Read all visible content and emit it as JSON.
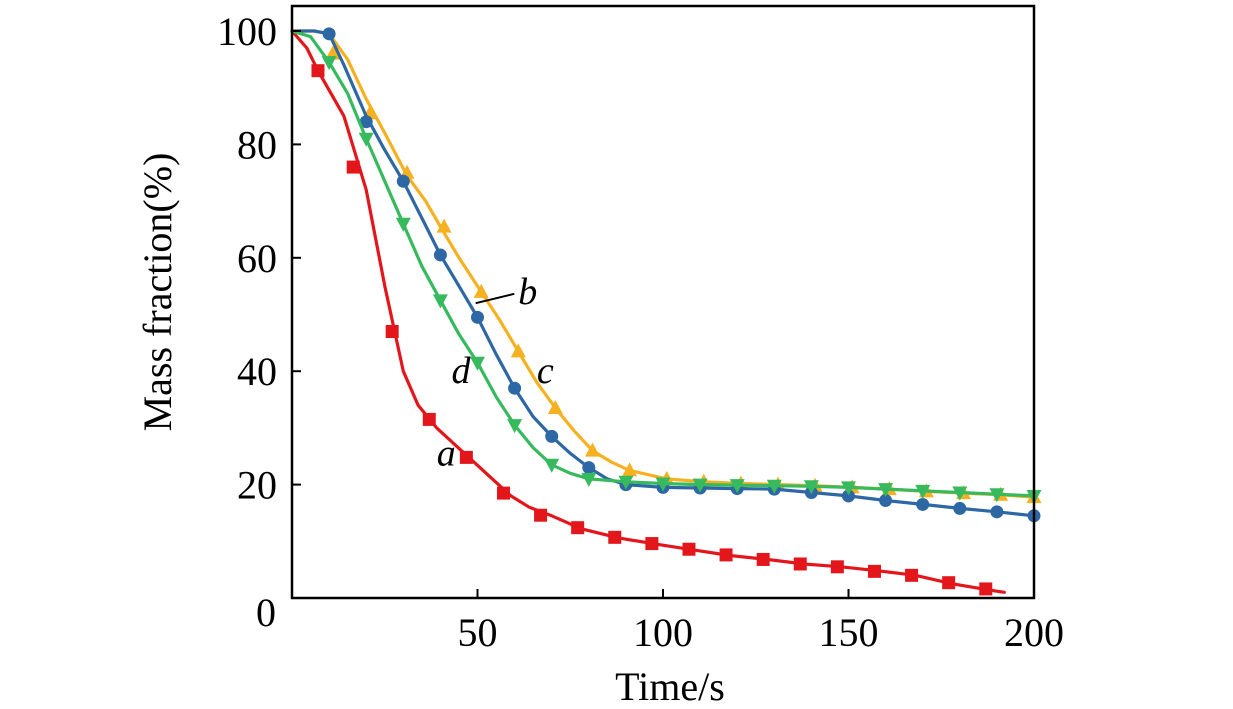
{
  "chart_data": {
    "type": "line",
    "title": "",
    "xlabel": "Time/s",
    "ylabel": "Mass fraction(%)",
    "xlim": [
      0,
      200
    ],
    "ylim": [
      0,
      100
    ],
    "xticks": [
      0,
      50,
      100,
      150,
      200
    ],
    "yticks": [
      0,
      20,
      40,
      60,
      80,
      100
    ],
    "x_tick_labels": [
      "0",
      "50",
      "100",
      "150",
      "200"
    ],
    "y_tick_labels": [
      "0",
      "20",
      "40",
      "60",
      "80",
      "100"
    ],
    "grid": false,
    "series": [
      {
        "name": "a",
        "color": "#e3161b",
        "marker": "square",
        "x": [
          0,
          4,
          7,
          14,
          20,
          25,
          30,
          34,
          39,
          44,
          49,
          54,
          59,
          64,
          70,
          78,
          88,
          98,
          108,
          118,
          128,
          138,
          148,
          158,
          168,
          178,
          188,
          192
        ],
        "y": [
          100,
          97,
          93,
          85,
          72,
          55,
          40,
          34,
          30,
          27,
          24,
          21,
          18,
          16,
          14.5,
          12.2,
          10.6,
          9.5,
          8.5,
          7.5,
          6.8,
          6.0,
          5.5,
          4.8,
          4.0,
          2.5,
          1.4,
          1.0
        ],
        "marker_x": [
          7,
          16.5,
          27,
          37,
          47,
          57,
          67,
          77,
          87,
          97,
          107,
          117,
          127,
          137,
          147,
          157,
          167,
          177,
          187
        ],
        "marker_y": [
          93,
          76,
          47,
          31.5,
          24.8,
          18.5,
          14.6,
          12.4,
          10.7,
          9.6,
          8.6,
          7.6,
          6.8,
          6.0,
          5.5,
          4.7,
          4.0,
          2.7,
          1.6
        ]
      },
      {
        "name": "b",
        "color": "#2e68a4",
        "marker": "circle",
        "x": [
          0,
          6,
          10,
          14,
          20,
          25,
          30,
          35,
          40,
          45,
          50,
          55,
          60,
          65,
          70,
          75,
          80,
          85,
          90,
          100,
          110,
          120,
          130,
          140,
          150,
          160,
          170,
          180,
          190,
          200
        ],
        "y": [
          100,
          100,
          99.5,
          94,
          85,
          79,
          73.5,
          67,
          60.5,
          55,
          49.5,
          43,
          37,
          32,
          28.5,
          25.5,
          23,
          21,
          20,
          19.5,
          19.4,
          19.3,
          19.2,
          18.6,
          18,
          17.2,
          16.5,
          15.8,
          15.2,
          14.5
        ],
        "marker_x": [
          10,
          20,
          30,
          40,
          50,
          60,
          70,
          80,
          90,
          100,
          110,
          120,
          130,
          140,
          150,
          160,
          170,
          180,
          190,
          200
        ],
        "marker_y": [
          99.5,
          84,
          73.5,
          60.5,
          49.5,
          37,
          28.5,
          23,
          20,
          19.5,
          19.4,
          19.3,
          19.2,
          18.6,
          18,
          17.2,
          16.5,
          15.8,
          15.2,
          14.5
        ]
      },
      {
        "name": "c",
        "color": "#f5b120",
        "marker": "triangle-up",
        "x": [
          0,
          6,
          10,
          15,
          20,
          25,
          31,
          36,
          40,
          45,
          51,
          56,
          61,
          66,
          71,
          76,
          81,
          86,
          91,
          101,
          111,
          121,
          131,
          141,
          151,
          161,
          171,
          181,
          191,
          200
        ],
        "y": [
          100,
          100,
          99.5,
          95,
          88,
          82,
          74.5,
          70,
          65.5,
          60,
          54,
          49,
          43.5,
          38,
          33.5,
          29.5,
          26,
          24,
          22.5,
          21,
          20.5,
          20.2,
          20,
          19.8,
          19.5,
          19.2,
          18.8,
          18.5,
          18.2,
          17.8
        ],
        "marker_x": [
          11,
          21,
          31,
          41,
          51,
          61,
          71,
          81,
          91,
          101,
          111,
          121,
          131,
          141,
          151,
          161,
          171,
          181,
          191,
          200
        ],
        "marker_y": [
          96,
          85.5,
          75,
          65.5,
          54,
          43.5,
          33.5,
          26,
          22.5,
          21,
          20.5,
          20.2,
          20,
          19.8,
          19.5,
          19.2,
          18.8,
          18.5,
          18.2,
          17.8
        ]
      },
      {
        "name": "d",
        "color": "#37ba5d",
        "marker": "triangle-down",
        "x": [
          0,
          5,
          10,
          15,
          20,
          25,
          30,
          35,
          40,
          45,
          50,
          55,
          60,
          65,
          70,
          75,
          80,
          90,
          100,
          110,
          120,
          130,
          140,
          150,
          160,
          170,
          180,
          190,
          200
        ],
        "y": [
          100,
          99,
          94.5,
          89,
          81,
          73.5,
          66,
          58.5,
          52.5,
          46.5,
          41.5,
          35.5,
          30.5,
          26.5,
          23.5,
          22,
          21,
          20.5,
          20.2,
          20,
          19.9,
          19.8,
          19.7,
          19.5,
          19.2,
          18.9,
          18.6,
          18.3,
          18
        ],
        "marker_x": [
          10,
          20,
          30,
          40,
          50,
          60,
          70,
          80,
          90,
          100,
          110,
          120,
          130,
          140,
          150,
          160,
          170,
          180,
          190,
          200
        ],
        "marker_y": [
          94.5,
          81,
          66,
          52.5,
          41.5,
          30.5,
          23.5,
          21,
          20.5,
          20.2,
          20,
          19.9,
          19.8,
          19.7,
          19.5,
          19.2,
          18.9,
          18.6,
          18.3,
          18
        ]
      }
    ],
    "annotations": [
      {
        "text": "a",
        "series": "a",
        "at_x": 39,
        "at_y": 25.5
      },
      {
        "text": "b",
        "series": "b",
        "at_x": 61,
        "at_y": 54,
        "leader_to_x": 49.5,
        "leader_to_y": 52
      },
      {
        "text": "c",
        "series": "c",
        "at_x": 66,
        "at_y": 40
      },
      {
        "text": "d",
        "series": "d",
        "at_x": 43,
        "at_y": 40
      }
    ]
  }
}
